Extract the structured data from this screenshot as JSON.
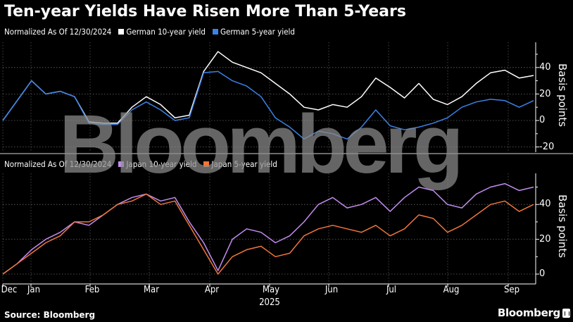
{
  "title": "Ten-year Yields Have Risen More Than 5-Years",
  "top_panel": {
    "subtitle": "Normalized As Of 12/30/2024",
    "legend": [
      {
        "label": "German 10-year yield",
        "color": "#ffffff"
      },
      {
        "label": "German 5-year yield",
        "color": "#3b82e6"
      }
    ],
    "ylabel": "Basis points",
    "yticks": [
      "40",
      "20",
      "0",
      "-20"
    ]
  },
  "bottom_panel": {
    "subtitle": "Normalized As Of 12/30/2024",
    "legend": [
      {
        "label": "Japan 10-year yield",
        "color": "#c48cf0"
      },
      {
        "label": "Japan 5-year yield",
        "color": "#f0763a"
      }
    ],
    "ylabel": "Basis points",
    "yticks": [
      "40",
      "20",
      "0"
    ]
  },
  "xaxis": {
    "months": [
      "Dec",
      "Jan",
      "Feb",
      "Mar",
      "Apr",
      "May",
      "Jun",
      "Jul",
      "Aug",
      "Sep"
    ],
    "year": "2025"
  },
  "footer": {
    "source": "Source: Bloomberg",
    "brand": "Bloomberg"
  },
  "watermark": "Bloomberg",
  "chart_data": [
    {
      "type": "line",
      "title": "Ten-year Yields Have Risen More Than 5-Years",
      "subtitle": "Normalized As Of 12/30/2024",
      "ylabel": "Basis points",
      "ylim": [
        -25,
        58
      ],
      "yticks": [
        -20,
        0,
        20,
        40
      ],
      "x": [
        "Dec 30",
        "Jan 8",
        "Jan 14",
        "Jan 20",
        "Jan 28",
        "Feb 5",
        "Feb 12",
        "Feb 18",
        "Feb 25",
        "Mar 4",
        "Mar 6",
        "Mar 12",
        "Mar 18",
        "Mar 25",
        "Apr 2",
        "Apr 8",
        "Apr 15",
        "Apr 22",
        "Apr 29",
        "May 6",
        "May 13",
        "May 20",
        "May 27",
        "Jun 3",
        "Jun 10",
        "Jun 17",
        "Jun 24",
        "Jul 1",
        "Jul 8",
        "Jul 15",
        "Jul 22",
        "Jul 29",
        "Aug 5",
        "Aug 12",
        "Aug 19",
        "Aug 26",
        "Sep 2",
        "Sep 5"
      ],
      "series": [
        {
          "name": "German 10-year yield",
          "color": "#ffffff",
          "values": [
            0,
            15,
            30,
            20,
            22,
            18,
            -1,
            -2,
            -2,
            10,
            18,
            12,
            2,
            4,
            37,
            52,
            44,
            40,
            36,
            28,
            20,
            10,
            8,
            12,
            10,
            18,
            32,
            25,
            17,
            28,
            16,
            12,
            18,
            28,
            36,
            38,
            32,
            34
          ]
        },
        {
          "name": "German 5-year yield",
          "color": "#3b82e6",
          "values": [
            0,
            15,
            30,
            20,
            22,
            18,
            -2,
            -3,
            -3,
            8,
            14,
            8,
            0,
            2,
            36,
            37,
            30,
            26,
            18,
            2,
            -5,
            -14,
            -8,
            -10,
            -14,
            -5,
            8,
            -4,
            -7,
            -5,
            -2,
            2,
            10,
            14,
            16,
            15,
            10,
            15
          ]
        }
      ]
    },
    {
      "type": "line",
      "ylabel": "Basis points",
      "ylim": [
        -5,
        58
      ],
      "yticks": [
        0,
        20,
        40
      ],
      "series": [
        {
          "name": "Japan 10-year yield",
          "color": "#c48cf0",
          "values": [
            0,
            6,
            14,
            20,
            24,
            30,
            28,
            34,
            40,
            44,
            46,
            42,
            44,
            30,
            18,
            2,
            20,
            26,
            24,
            18,
            22,
            30,
            40,
            44,
            38,
            40,
            44,
            36,
            44,
            50,
            48,
            40,
            38,
            46,
            50,
            52,
            48,
            50
          ]
        },
        {
          "name": "Japan 5-year yield",
          "color": "#f0763a",
          "values": [
            0,
            6,
            12,
            18,
            22,
            30,
            30,
            34,
            40,
            42,
            46,
            40,
            42,
            28,
            14,
            0,
            10,
            14,
            16,
            10,
            12,
            22,
            26,
            28,
            26,
            24,
            28,
            22,
            26,
            34,
            32,
            24,
            28,
            34,
            40,
            42,
            36,
            40
          ]
        }
      ]
    }
  ]
}
